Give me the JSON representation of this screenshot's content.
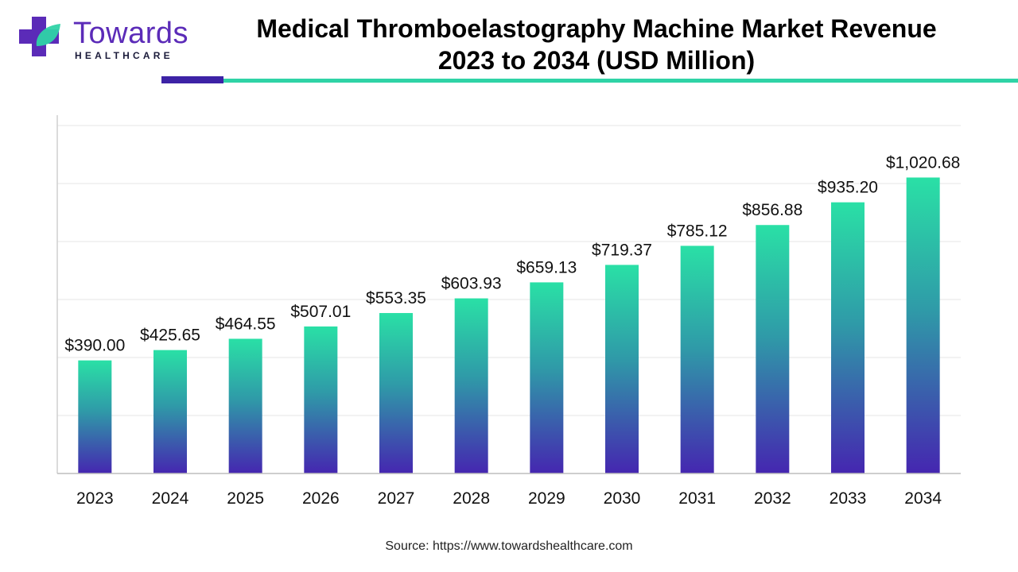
{
  "brand": {
    "name": "Towards",
    "tagline": "HEALTHCARE",
    "colors": {
      "purple": "#5b2bb8",
      "teal": "#2fd3a6",
      "dark": "#3d23a6"
    }
  },
  "title_line1": "Medical Thromboelastography Machine Market Revenue",
  "title_line2": "2023 to 2034 (USD Million)",
  "source": "Source: https://www.towardshealthcare.com",
  "chart_data": {
    "type": "bar",
    "title": "Medical Thromboelastography Machine Market Revenue 2023 to 2034 (USD Million)",
    "categories": [
      "2023",
      "2024",
      "2025",
      "2026",
      "2027",
      "2028",
      "2029",
      "2030",
      "2031",
      "2032",
      "2033",
      "2034"
    ],
    "values": [
      390.0,
      425.65,
      464.55,
      507.01,
      553.35,
      603.93,
      659.13,
      719.37,
      785.12,
      856.88,
      935.2,
      1020.68
    ],
    "value_labels": [
      "$390.00",
      "$425.65",
      "$464.55",
      "$507.01",
      "$553.35",
      "$603.93",
      "$659.13",
      "$719.37",
      "$785.12",
      "$856.88",
      "$935.20",
      "$1,020.68"
    ],
    "xlabel": "",
    "ylabel": "",
    "ylim": [
      0,
      1200
    ],
    "grid": true,
    "bar_gradient": {
      "top": "#2ae0a6",
      "middle": "#2f9aa8",
      "bottom": "#4526b0"
    }
  }
}
